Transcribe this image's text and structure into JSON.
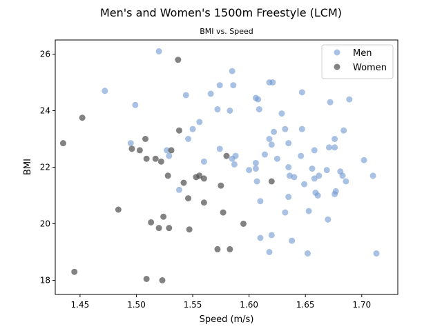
{
  "chart_data": {
    "type": "scatter",
    "title": "Men's and Women's 1500m Freestyle (LCM)",
    "subtitle": "BMI vs. Speed",
    "xlabel": "Speed (m/s)",
    "ylabel": "BMI",
    "xlim": [
      1.428,
      1.732
    ],
    "ylim": [
      17.5,
      26.5
    ],
    "xticks": [
      "1.45",
      "1.50",
      "1.55",
      "1.60",
      "1.65",
      "1.70"
    ],
    "xtick_values": [
      1.45,
      1.5,
      1.55,
      1.6,
      1.65,
      1.7
    ],
    "yticks": [
      "18",
      "20",
      "22",
      "24",
      "26"
    ],
    "ytick_values": [
      18,
      20,
      22,
      24,
      26
    ],
    "grid": false,
    "legend_position": "top-right",
    "series": [
      {
        "name": "Men",
        "color": "#6f97d1",
        "points": [
          [
            1.472,
            24.7
          ],
          [
            1.499,
            24.2
          ],
          [
            1.495,
            22.85
          ],
          [
            1.52,
            26.1
          ],
          [
            1.527,
            22.6
          ],
          [
            1.529,
            22.4
          ],
          [
            1.538,
            21.2
          ],
          [
            1.544,
            24.55
          ],
          [
            1.546,
            23.0
          ],
          [
            1.55,
            23.35
          ],
          [
            1.556,
            23.6
          ],
          [
            1.56,
            22.2
          ],
          [
            1.566,
            24.6
          ],
          [
            1.572,
            24.05
          ],
          [
            1.574,
            24.9
          ],
          [
            1.574,
            22.65
          ],
          [
            1.583,
            24.0
          ],
          [
            1.585,
            25.4
          ],
          [
            1.586,
            24.9
          ],
          [
            1.585,
            22.3
          ],
          [
            1.587,
            22.1
          ],
          [
            1.588,
            22.4
          ],
          [
            1.6,
            21.9
          ],
          [
            1.606,
            21.95
          ],
          [
            1.606,
            22.15
          ],
          [
            1.606,
            24.45
          ],
          [
            1.608,
            24.4
          ],
          [
            1.609,
            24.05
          ],
          [
            1.607,
            21.5
          ],
          [
            1.61,
            20.8
          ],
          [
            1.61,
            19.5
          ],
          [
            1.614,
            22.45
          ],
          [
            1.618,
            23.0
          ],
          [
            1.618,
            25.0
          ],
          [
            1.621,
            25.0
          ],
          [
            1.62,
            22.8
          ],
          [
            1.62,
            19.6
          ],
          [
            1.618,
            19.0
          ],
          [
            1.622,
            23.25
          ],
          [
            1.625,
            22.3
          ],
          [
            1.629,
            23.9
          ],
          [
            1.632,
            23.35
          ],
          [
            1.632,
            20.4
          ],
          [
            1.635,
            22.0
          ],
          [
            1.635,
            20.95
          ],
          [
            1.635,
            22.85
          ],
          [
            1.636,
            21.7
          ],
          [
            1.638,
            19.4
          ],
          [
            1.64,
            21.65
          ],
          [
            1.646,
            22.4
          ],
          [
            1.647,
            23.35
          ],
          [
            1.647,
            24.65
          ],
          [
            1.649,
            21.4
          ],
          [
            1.652,
            18.95
          ],
          [
            1.653,
            20.45
          ],
          [
            1.656,
            21.95
          ],
          [
            1.658,
            21.6
          ],
          [
            1.658,
            22.6
          ],
          [
            1.659,
            21.1
          ],
          [
            1.661,
            21.0
          ],
          [
            1.662,
            21.7
          ],
          [
            1.669,
            21.9
          ],
          [
            1.67,
            20.15
          ],
          [
            1.671,
            22.7
          ],
          [
            1.672,
            24.3
          ],
          [
            1.676,
            23.0
          ],
          [
            1.676,
            22.7
          ],
          [
            1.676,
            21.05
          ],
          [
            1.677,
            21.15
          ],
          [
            1.681,
            21.85
          ],
          [
            1.683,
            21.7
          ],
          [
            1.684,
            23.3
          ],
          [
            1.686,
            21.5
          ],
          [
            1.689,
            24.4
          ],
          [
            1.702,
            22.25
          ],
          [
            1.71,
            21.7
          ],
          [
            1.713,
            18.95
          ]
        ]
      },
      {
        "name": "Women",
        "color": "#4d4d4d",
        "points": [
          [
            1.435,
            22.85
          ],
          [
            1.445,
            18.3
          ],
          [
            1.452,
            23.75
          ],
          [
            1.484,
            20.5
          ],
          [
            1.496,
            22.65
          ],
          [
            1.503,
            22.6
          ],
          [
            1.508,
            23.0
          ],
          [
            1.509,
            22.3
          ],
          [
            1.509,
            18.05
          ],
          [
            1.513,
            20.05
          ],
          [
            1.517,
            22.3
          ],
          [
            1.52,
            19.85
          ],
          [
            1.522,
            22.2
          ],
          [
            1.523,
            18.0
          ],
          [
            1.524,
            20.25
          ],
          [
            1.528,
            21.7
          ],
          [
            1.529,
            19.85
          ],
          [
            1.531,
            22.6
          ],
          [
            1.537,
            25.8
          ],
          [
            1.538,
            23.3
          ],
          [
            1.542,
            21.45
          ],
          [
            1.546,
            20.9
          ],
          [
            1.547,
            19.8
          ],
          [
            1.553,
            21.65
          ],
          [
            1.556,
            21.7
          ],
          [
            1.56,
            21.6
          ],
          [
            1.56,
            20.75
          ],
          [
            1.572,
            19.1
          ],
          [
            1.575,
            21.35
          ],
          [
            1.577,
            20.4
          ],
          [
            1.58,
            22.4
          ],
          [
            1.583,
            19.1
          ],
          [
            1.595,
            20.0
          ],
          [
            1.62,
            21.5
          ]
        ]
      }
    ]
  }
}
